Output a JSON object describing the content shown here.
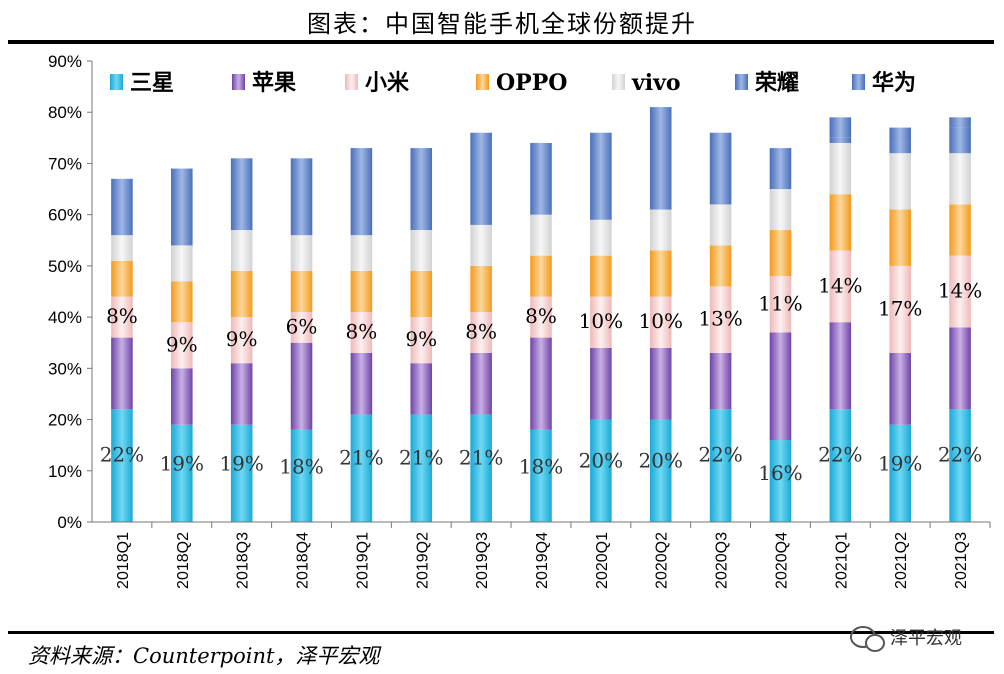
{
  "header": {
    "title": "图表：中国智能手机全球份额提升"
  },
  "footer": {
    "source": "资料来源：Counterpoint，泽平宏观"
  },
  "watermark": {
    "text": "泽平宏观"
  },
  "chart_data": {
    "type": "bar",
    "stacked": true,
    "title": "",
    "xlabel": "",
    "ylabel": "",
    "ylim": [
      0,
      90
    ],
    "yticks": [
      "0%",
      "10%",
      "20%",
      "30%",
      "40%",
      "50%",
      "60%",
      "70%",
      "80%",
      "90%"
    ],
    "grid": false,
    "legend_position": "top",
    "categories": [
      "2018Q1",
      "2018Q2",
      "2018Q3",
      "2018Q4",
      "2019Q1",
      "2019Q2",
      "2019Q3",
      "2019Q4",
      "2020Q1",
      "2020Q2",
      "2020Q3",
      "2020Q4",
      "2021Q1",
      "2021Q2",
      "2021Q3"
    ],
    "series": [
      {
        "name": "三星",
        "color": "#2bbfe6",
        "values": [
          22,
          19,
          19,
          18,
          21,
          21,
          21,
          18,
          20,
          20,
          22,
          16,
          22,
          19,
          22
        ],
        "labels": [
          "22%",
          "19%",
          "19%",
          "18%",
          "21%",
          "21%",
          "21%",
          "18%",
          "20%",
          "20%",
          "22%",
          "16%",
          "22%",
          "19%",
          "22%"
        ]
      },
      {
        "name": "苹果",
        "color": "#8e63bf",
        "values": [
          14,
          11,
          12,
          17,
          12,
          10,
          12,
          18,
          14,
          14,
          11,
          21,
          17,
          14,
          16
        ]
      },
      {
        "name": "小米",
        "color": "#f6cfcf",
        "values": [
          8,
          9,
          9,
          6,
          8,
          9,
          8,
          8,
          10,
          10,
          13,
          11,
          14,
          17,
          14
        ],
        "labels": [
          "8%",
          "9%",
          "9%",
          "6%",
          "8%",
          "9%",
          "8%",
          "8%",
          "10%",
          "10%",
          "13%",
          "11%",
          "14%",
          "17%",
          "14%"
        ]
      },
      {
        "name": "OPPO",
        "color": "#f7a93a",
        "values": [
          7,
          8,
          9,
          8,
          8,
          9,
          9,
          8,
          8,
          9,
          8,
          9,
          11,
          11,
          10
        ]
      },
      {
        "name": "vivo",
        "color": "#e3e3e3",
        "values": [
          5,
          7,
          8,
          7,
          7,
          8,
          8,
          8,
          7,
          8,
          8,
          8,
          10,
          11,
          10
        ]
      },
      {
        "name": "荣耀",
        "color": "#5a7fc6",
        "values": [
          0,
          0,
          0,
          0,
          0,
          0,
          0,
          0,
          0,
          0,
          0,
          0,
          1,
          2,
          5
        ]
      },
      {
        "name": "华为",
        "color": "#5a7fc6",
        "values": [
          11,
          15,
          14,
          15,
          17,
          16,
          18,
          14,
          17,
          20,
          14,
          8,
          4,
          3,
          2
        ]
      }
    ]
  }
}
